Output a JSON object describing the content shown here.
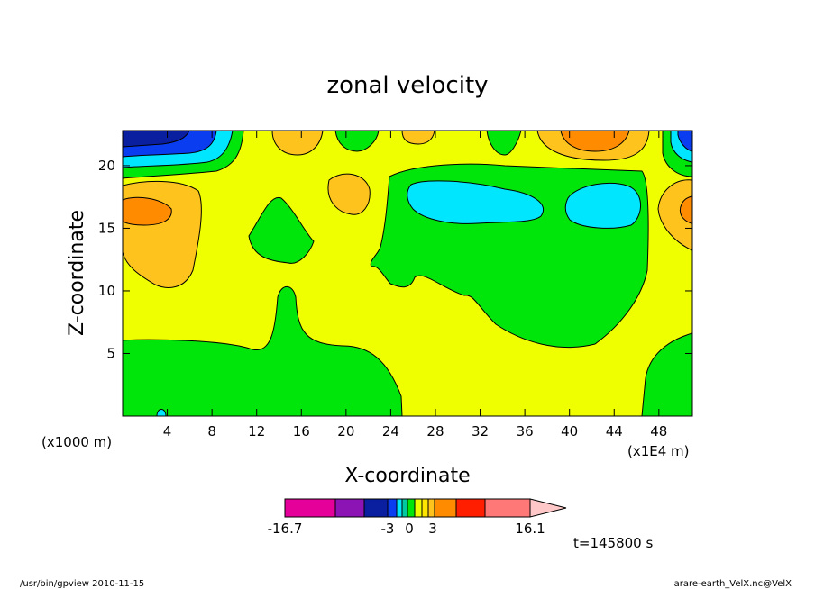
{
  "chart_data": {
    "type": "heatmap",
    "title": "zonal velocity",
    "xlabel": "X-coordinate",
    "ylabel": "Z-coordinate",
    "x_unit_label": "(x1E4 m)",
    "y_unit_label": "(x1000 m)",
    "x_ticks": [
      4,
      8,
      12,
      16,
      20,
      24,
      28,
      32,
      36,
      40,
      44,
      48
    ],
    "y_ticks": [
      5,
      10,
      15,
      20
    ],
    "xlim": [
      0,
      51
    ],
    "ylim": [
      0,
      22.8
    ],
    "levels": [
      {
        "v": -16.7,
        "color": "#e6009a"
      },
      {
        "v": -13.0,
        "color": "#8c14b4"
      },
      {
        "v": -10.0,
        "color": "#0a1ea0"
      },
      {
        "v": -6.0,
        "color": "#0a3cf0"
      },
      {
        "v": -3.0,
        "color": "#00e6ff"
      },
      {
        "v": -2.0,
        "color": "#00c8a0"
      },
      {
        "v": -1.0,
        "color": "#00e60a"
      },
      {
        "v": 0.0,
        "color": "#f0ff00"
      },
      {
        "v": 1.0,
        "color": "#ffe600"
      },
      {
        "v": 2.0,
        "color": "#ffc31e"
      },
      {
        "v": 3.0,
        "color": "#ff8c00"
      },
      {
        "v": 7.0,
        "color": "#ff1e00"
      },
      {
        "v": 10.0,
        "color": "#ff7878"
      },
      {
        "v": 16.1,
        "color": "#ffc8c8"
      }
    ],
    "colorbar_labels": [
      "-16.7",
      "-3",
      "0",
      "3",
      "16.1"
    ],
    "time_label": "t=145800 s",
    "regions": {
      "background": "yellow (0 to 1)",
      "top_left_corner": "negative (-16.7 to -3)",
      "top_right_corner": "negative (-10 to -3)",
      "center_right_jet": "cyan (-3 to -2) inside green",
      "bottom_layer": "green (-1 to 0)",
      "left_mid_level": "orange (1 to 3)"
    }
  },
  "footer": {
    "left": "/usr/bin/gpview   2010-11-15",
    "right": "arare-earth_VelX.nc@VelX"
  }
}
